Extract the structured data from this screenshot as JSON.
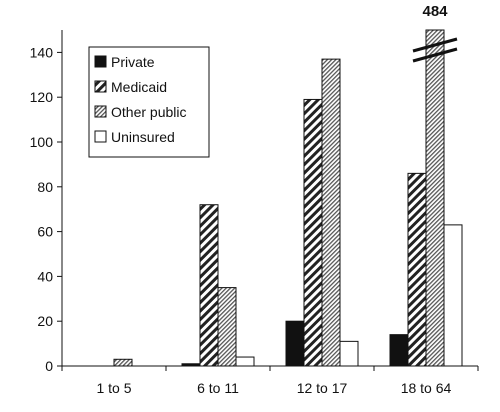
{
  "chart_data": {
    "type": "bar",
    "title": "",
    "xlabel": "",
    "ylabel": "",
    "categories": [
      "1 to 5",
      "6 to 11",
      "12 to 17",
      "18 to 64"
    ],
    "series": [
      {
        "name": "Private",
        "values": [
          0,
          1,
          20,
          14
        ],
        "pattern": "solid-black"
      },
      {
        "name": "Medicaid",
        "values": [
          0,
          72,
          119,
          86
        ],
        "pattern": "dense-diagonal-hatch"
      },
      {
        "name": "Other public",
        "values": [
          3,
          35,
          137,
          484
        ],
        "pattern": "fine-diagonal-hatch"
      },
      {
        "name": "Uninsured",
        "values": [
          0,
          4,
          11,
          63
        ],
        "pattern": "white"
      }
    ],
    "ylim": [
      0,
      150
    ],
    "yticks": [
      0,
      20,
      40,
      60,
      80,
      100,
      120,
      140
    ],
    "axis_break": {
      "category": "18 to 64",
      "series": "Other public",
      "label": "484"
    },
    "legend_position": "top-left",
    "grid": false
  }
}
